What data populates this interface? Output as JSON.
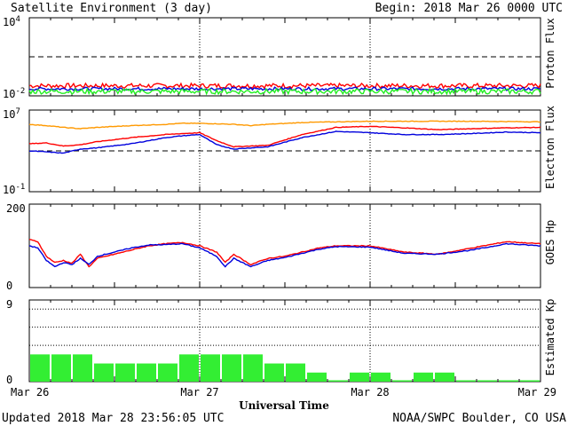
{
  "header": {
    "title": "Satellite Environment (3 day)",
    "begin": "Begin:  2018 Mar 26 0000 UTC"
  },
  "footer": {
    "updated": "Updated 2018 Mar 28 23:56:05 UTC",
    "credit": "NOAA/SWPC Boulder, CO USA"
  },
  "colors": {
    "red": "#ff0000",
    "blue": "#0000dd",
    "green": "#22ee22",
    "orange": "#ff9900",
    "kp_bar": "#33ee33"
  },
  "x_axis": {
    "title": "Universal Time",
    "tick_labels": [
      "Mar 26",
      "Mar 27",
      "Mar 28",
      "Mar 29"
    ],
    "range_days": [
      0,
      3
    ]
  },
  "chart_data": [
    {
      "type": "line",
      "id": "proton",
      "ylabel": "Proton Flux",
      "yscale": "log",
      "ylim": [
        0.01,
        10000
      ],
      "tick_labels": [
        {
          "base": "10",
          "exp": "4",
          "value": 10000
        },
        {
          "base": "10",
          "exp": "-2",
          "value": 0.01
        }
      ],
      "threshold": 10,
      "series": [
        {
          "color": "red",
          "level": 0.06,
          "noise": 0.18,
          "x": [
            0,
            3
          ],
          "y": [
            0.06,
            0.06
          ]
        },
        {
          "color": "blue",
          "level": 0.035,
          "noise": 0.12,
          "x": [
            0,
            3
          ],
          "y": [
            0.035,
            0.035
          ]
        },
        {
          "color": "green",
          "level": 0.022,
          "noise": 0.2,
          "x": [
            0,
            3
          ],
          "y": [
            0.022,
            0.022
          ]
        }
      ]
    },
    {
      "type": "line",
      "id": "electron",
      "ylabel": "Electron Flux",
      "yscale": "log",
      "ylim": [
        0.1,
        10000000
      ],
      "tick_labels": [
        {
          "base": "10",
          "exp": "7",
          "value": 10000000
        },
        {
          "base": "10",
          "exp": "-1",
          "value": 0.1
        }
      ],
      "threshold": 1000,
      "series": [
        {
          "color": "orange",
          "x": [
            0,
            0.1,
            0.2,
            0.3,
            0.4,
            0.6,
            0.8,
            0.9,
            1.0,
            1.1,
            1.2,
            1.3,
            1.4,
            1.6,
            1.8,
            2.0,
            2.2,
            2.4,
            2.6,
            2.8,
            3.0
          ],
          "y": [
            400000,
            300000,
            200000,
            150000,
            200000,
            300000,
            400000,
            500000,
            500000,
            450000,
            400000,
            300000,
            400000,
            600000,
            700000,
            800000,
            800000,
            800000,
            800000,
            750000,
            700000
          ]
        },
        {
          "color": "red",
          "x": [
            0,
            0.1,
            0.2,
            0.3,
            0.4,
            0.6,
            0.8,
            0.9,
            1.0,
            1.1,
            1.2,
            1.3,
            1.4,
            1.6,
            1.8,
            2.0,
            2.2,
            2.4,
            2.6,
            2.8,
            3.0
          ],
          "y": [
            5000,
            6000,
            3000,
            4000,
            8000,
            20000,
            40000,
            50000,
            60000,
            10000,
            2500,
            3000,
            3500,
            40000,
            200000,
            250000,
            180000,
            120000,
            150000,
            180000,
            200000
          ]
        },
        {
          "color": "blue",
          "x": [
            0,
            0.1,
            0.2,
            0.3,
            0.4,
            0.6,
            0.8,
            0.9,
            1.0,
            1.1,
            1.2,
            1.3,
            1.4,
            1.6,
            1.8,
            2.0,
            2.2,
            2.4,
            2.6,
            2.8,
            3.0
          ],
          "y": [
            1000,
            800,
            600,
            1500,
            2000,
            5000,
            20000,
            30000,
            40000,
            4000,
            1500,
            2000,
            2500,
            20000,
            80000,
            60000,
            40000,
            40000,
            50000,
            70000,
            60000
          ]
        }
      ]
    },
    {
      "type": "line",
      "id": "goes_hp",
      "ylabel": "GOES Hp",
      "yscale": "linear",
      "ylim": [
        0,
        200
      ],
      "tick_labels": [
        {
          "base": "200",
          "value": 200
        },
        {
          "base": "0",
          "value": 0
        }
      ],
      "series": [
        {
          "color": "red",
          "x": [
            0,
            0.05,
            0.1,
            0.15,
            0.2,
            0.25,
            0.3,
            0.35,
            0.4,
            0.5,
            0.6,
            0.7,
            0.8,
            0.9,
            1.0,
            1.1,
            1.15,
            1.2,
            1.3,
            1.4,
            1.5,
            1.6,
            1.7,
            1.8,
            2.0,
            2.2,
            2.4,
            2.6,
            2.8,
            3.0
          ],
          "y": [
            115,
            110,
            75,
            60,
            65,
            58,
            80,
            50,
            70,
            80,
            90,
            100,
            105,
            108,
            100,
            85,
            60,
            80,
            55,
            70,
            75,
            85,
            95,
            100,
            100,
            85,
            80,
            95,
            110,
            105
          ]
        },
        {
          "color": "blue",
          "x": [
            0,
            0.05,
            0.1,
            0.15,
            0.2,
            0.25,
            0.3,
            0.35,
            0.4,
            0.5,
            0.6,
            0.7,
            0.8,
            0.9,
            1.0,
            1.1,
            1.15,
            1.2,
            1.3,
            1.4,
            1.5,
            1.6,
            1.7,
            1.8,
            2.0,
            2.2,
            2.4,
            2.6,
            2.8,
            3.0
          ],
          "y": [
            100,
            95,
            65,
            50,
            60,
            55,
            70,
            55,
            75,
            85,
            95,
            102,
            103,
            105,
            95,
            75,
            50,
            70,
            50,
            65,
            72,
            82,
            92,
            98,
            97,
            82,
            80,
            90,
            105,
            100
          ]
        }
      ]
    },
    {
      "type": "bar",
      "id": "kp",
      "ylabel": "Estimated Kp",
      "ylim": [
        0,
        9
      ],
      "tick_labels": [
        {
          "base": "9",
          "value": 9
        },
        {
          "base": "0",
          "value": 0
        }
      ],
      "dotted_levels": [
        4,
        6,
        8
      ],
      "bar_hours": 3,
      "values": [
        3,
        3,
        3,
        2,
        2,
        2,
        2,
        3,
        3,
        3,
        3,
        2,
        2,
        1,
        0.15,
        1,
        1,
        0.15,
        1,
        1,
        0.15,
        0.15,
        0.15,
        0.15
      ]
    }
  ]
}
